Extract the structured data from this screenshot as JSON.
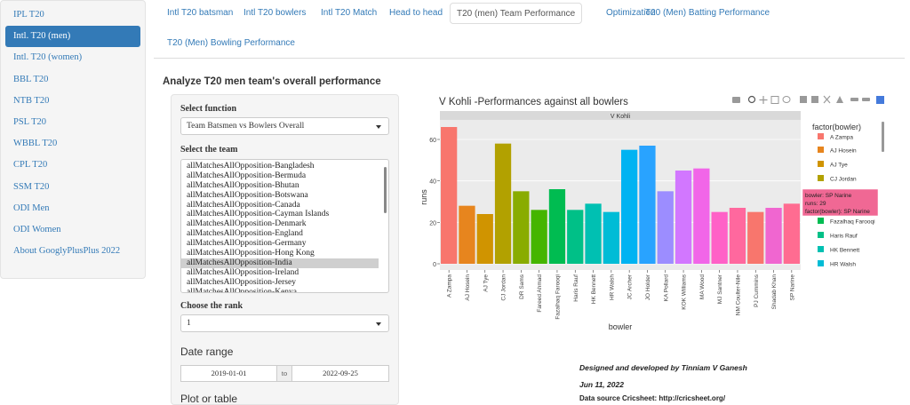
{
  "sidebar": {
    "items": [
      {
        "label": "IPL T20",
        "active": false
      },
      {
        "label": "Intl. T20 (men)",
        "active": true
      },
      {
        "label": "Intl. T20 (women)",
        "active": false
      },
      {
        "label": "BBL T20",
        "active": false
      },
      {
        "label": "NTB T20",
        "active": false
      },
      {
        "label": "PSL T20",
        "active": false
      },
      {
        "label": "WBBL T20",
        "active": false
      },
      {
        "label": "CPL T20",
        "active": false
      },
      {
        "label": "SSM T20",
        "active": false
      },
      {
        "label": "ODI Men",
        "active": false
      },
      {
        "label": "ODI Women",
        "active": false
      },
      {
        "label": "About GooglyPlusPlus 2022",
        "active": false
      }
    ]
  },
  "tabs": [
    {
      "label": "Intl T20 batsman",
      "active": false
    },
    {
      "label": "Intl T20 bowlers",
      "active": false
    },
    {
      "label": "Intl T20 Match",
      "active": false
    },
    {
      "label": "Head to head",
      "active": false
    },
    {
      "label": "T20 (men) Team Performance",
      "active": true
    },
    {
      "label": "Optimization",
      "active": false
    },
    {
      "label": "T20 (Men) Batting Performance",
      "active": false
    },
    {
      "label": "T20 (Men) Bowling Performance",
      "active": false
    }
  ],
  "page": {
    "heading": "Analyze T20 men team's overall performance"
  },
  "form": {
    "function_label": "Select function",
    "function_value": "Team Batsmen vs Bowlers Overall",
    "team_label": "Select the team",
    "team_options": [
      "allMatchesAllOpposition-Bangladesh",
      "allMatchesAllOpposition-Bermuda",
      "allMatchesAllOpposition-Bhutan",
      "allMatchesAllOpposition-Botswana",
      "allMatchesAllOpposition-Canada",
      "allMatchesAllOpposition-Cayman Islands",
      "allMatchesAllOpposition-Denmark",
      "allMatchesAllOpposition-England",
      "allMatchesAllOpposition-Germany",
      "allMatchesAllOpposition-Hong Kong",
      "allMatchesAllOpposition-India",
      "allMatchesAllOpposition-Ireland",
      "allMatchesAllOpposition-Jersey",
      "allMatchesAllOpposition-Kenya"
    ],
    "team_selected": "allMatchesAllOpposition-India",
    "rank_label": "Choose the rank",
    "rank_value": "1",
    "date_label": "Date range",
    "date_start": "2019-01-01",
    "date_sep": "to",
    "date_end": "2022-09-25",
    "plot_label": "Plot or table"
  },
  "plot": {
    "title": "V Kohli -Performances against all bowlers",
    "legend_title": "factor(bowler)",
    "tooltip": [
      "bowler: SP Narine",
      "runs: 29",
      "factor(bowler): SP Narine"
    ]
  },
  "credits": {
    "line1": "Designed and developed by Tinniam V Ganesh",
    "line2": "Jun 11, 2022",
    "line3": "Data source Cricsheet: http://cricsheet.org/"
  },
  "chart_data": {
    "type": "bar",
    "title": "V Kohli -Performances against all bowlers",
    "facet_label": "V Kohli",
    "xlabel": "bowler",
    "ylabel": "runs",
    "ylim": [
      0,
      70
    ],
    "yticks": [
      0,
      20,
      40,
      60
    ],
    "categories": [
      "A Zampa",
      "AJ Hosein",
      "AJ Tye",
      "CJ Jordan",
      "DR Sams",
      "Fareed Ahmad",
      "Fazalhaq Farooqi",
      "Haris Rauf",
      "HK Bennett",
      "HR Walsh",
      "JC Archer",
      "JO Holder",
      "KA Pollard",
      "KOK Williams",
      "MA Wood",
      "MJ Santner",
      "NM Coulter-Nile",
      "PJ Cummins",
      "Shadab Khan",
      "SP Narine"
    ],
    "values": [
      66,
      28,
      24,
      58,
      35,
      26,
      36,
      26,
      29,
      25,
      55,
      57,
      35,
      45,
      46,
      25,
      27,
      25,
      27,
      29
    ],
    "colors": [
      "#F8766D",
      "#E7851E",
      "#D09400",
      "#B2A100",
      "#89AC00",
      "#45B500",
      "#00BC51",
      "#00C087",
      "#00C0B2",
      "#00BCD6",
      "#00B3F2",
      "#29A3FF",
      "#9C8DFF",
      "#D277FF",
      "#F166E8",
      "#FF61C7",
      "#FF689E",
      "#F8766D",
      "#F066D0",
      "#FF6C91"
    ],
    "legend_entries": [
      {
        "label": "A Zampa",
        "color": "#F8766D"
      },
      {
        "label": "AJ Hosein",
        "color": "#E7851E"
      },
      {
        "label": "AJ Tye",
        "color": "#D09400"
      },
      {
        "label": "CJ Jordan",
        "color": "#B2A100"
      },
      {
        "label": "Fazalhaq Farooqi",
        "color": "#00BC51"
      },
      {
        "label": "Haris Rauf",
        "color": "#00C087"
      },
      {
        "label": "HK Bennett",
        "color": "#00C0B2"
      },
      {
        "label": "HR Walsh",
        "color": "#00BCD6"
      }
    ]
  }
}
